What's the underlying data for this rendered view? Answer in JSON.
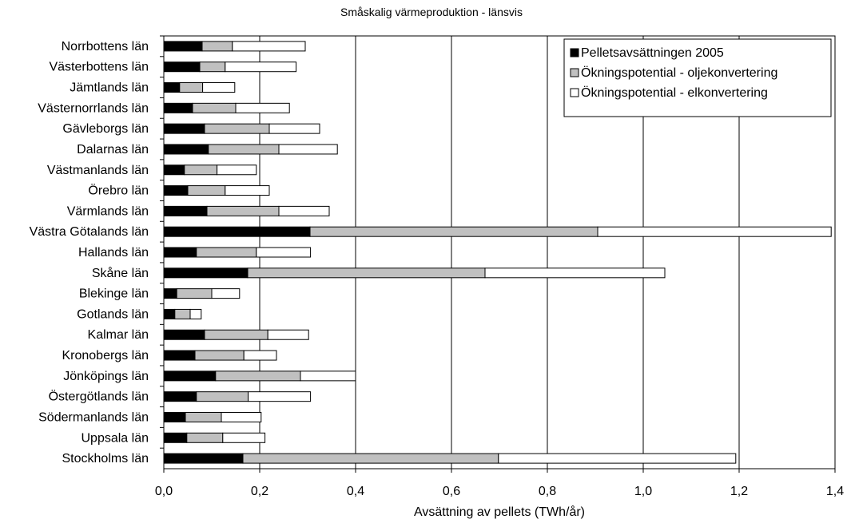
{
  "chart_data": {
    "type": "bar",
    "orientation": "horizontal",
    "stacked": true,
    "title": "Småskalig värmeproduktion - länsvis",
    "xlabel": "Avsättning av pellets (TWh/år)",
    "ylabel": "",
    "xlim": [
      0,
      1.4
    ],
    "xticks": [
      "0,0",
      "0,2",
      "0,4",
      "0,6",
      "0,8",
      "1,0",
      "1,2",
      "1,4"
    ],
    "grid": "vertical",
    "legend_position": "top-right",
    "categories": [
      "Norrbottens län",
      "Västerbottens län",
      "Jämtlands län",
      "Västernorrlands län",
      "Gävleborgs län",
      "Dalarnas län",
      "Västmanlands län",
      "Örebro län",
      "Värmlands län",
      "Västra Götalands län",
      "Hallands län",
      "Skåne län",
      "Blekinge län",
      "Gotlands län",
      "Kalmar län",
      "Kronobergs län",
      "Jönköpings län",
      "Östergötlands län",
      "Södermanlands län",
      "Uppsala län",
      "Stockholms län"
    ],
    "series": [
      {
        "name": "Pelletsavsättningen 2005",
        "color": "#000000",
        "values": [
          0.08,
          0.075,
          0.033,
          0.06,
          0.085,
          0.093,
          0.043,
          0.05,
          0.09,
          0.305,
          0.068,
          0.175,
          0.027,
          0.023,
          0.085,
          0.065,
          0.108,
          0.068,
          0.045,
          0.048,
          0.165
        ]
      },
      {
        "name": "Ökningspotential - oljekonvertering",
        "color": "#c0c0c0",
        "values": [
          0.063,
          0.053,
          0.048,
          0.09,
          0.135,
          0.147,
          0.068,
          0.078,
          0.15,
          0.6,
          0.125,
          0.495,
          0.073,
          0.032,
          0.132,
          0.102,
          0.177,
          0.108,
          0.075,
          0.075,
          0.533
        ]
      },
      {
        "name": "Ökningspotential - elkonvertering",
        "color": "#ffffff",
        "values": [
          0.152,
          0.148,
          0.067,
          0.112,
          0.105,
          0.122,
          0.082,
          0.092,
          0.105,
          0.487,
          0.113,
          0.375,
          0.058,
          0.023,
          0.085,
          0.068,
          0.115,
          0.13,
          0.083,
          0.088,
          0.495
        ]
      }
    ]
  }
}
